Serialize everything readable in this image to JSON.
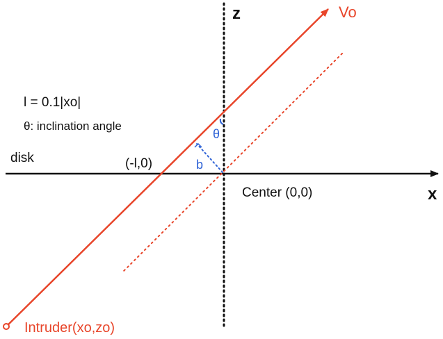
{
  "labels": {
    "z_axis": "z",
    "x_axis": "x",
    "velocity": "Vo",
    "l_def": "l = 0.1|xo|",
    "theta_def": "θ: inclination angle",
    "disk": "disk",
    "crossing_point": "(-l,0)",
    "center": "Center (0,0)",
    "theta": "θ",
    "impact_param": "b",
    "intruder": "Intruder(xo,zo)"
  },
  "colors": {
    "axes": "#111111",
    "trajectory": "#e8452a",
    "annotation": "#2f63d6"
  }
}
